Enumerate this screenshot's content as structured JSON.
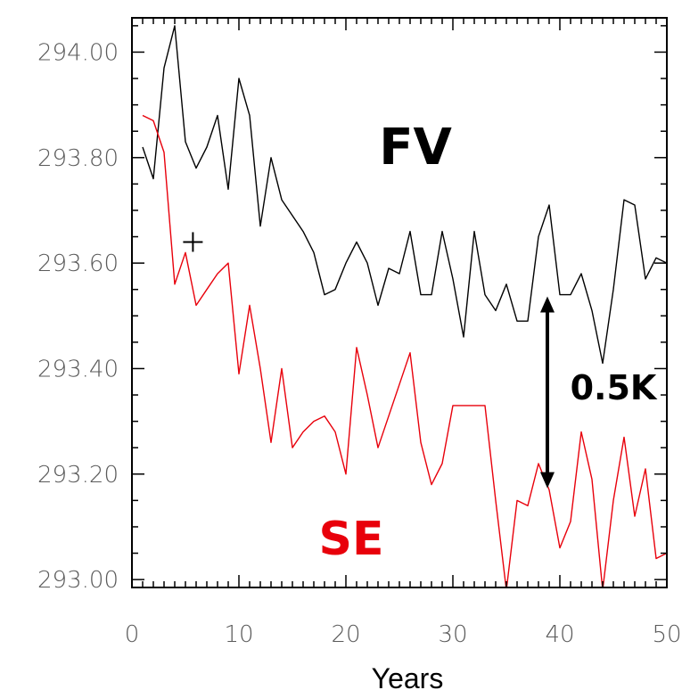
{
  "chart_data": {
    "type": "line",
    "xlabel": "Years",
    "ylabel": "",
    "xlim": [
      0,
      50
    ],
    "ylim": [
      292.985,
      294.065
    ],
    "xticks": [
      0,
      10,
      20,
      30,
      40,
      50
    ],
    "xtick_labels": [
      "0",
      "10",
      "20",
      "30",
      "40",
      "50"
    ],
    "yticks": [
      293.0,
      293.2,
      293.4,
      293.6,
      293.8,
      294.0
    ],
    "ytick_labels": [
      "293.00",
      "293.20",
      "293.40",
      "293.60",
      "293.80",
      "294.00"
    ],
    "grid": false,
    "series": [
      {
        "name": "FV",
        "color": "#000000",
        "x": [
          1,
          2,
          3,
          4,
          5,
          6,
          7,
          8,
          9,
          10,
          11,
          12,
          13,
          14,
          15,
          16,
          17,
          18,
          19,
          20,
          21,
          22,
          23,
          24,
          25,
          26,
          27,
          28,
          29,
          30,
          31,
          32,
          33,
          34,
          35,
          36,
          37,
          38,
          39,
          40,
          41,
          42,
          43,
          44,
          45,
          46,
          47,
          48,
          49,
          50
        ],
        "values": [
          293.82,
          293.76,
          293.97,
          294.05,
          293.83,
          293.78,
          293.82,
          293.88,
          293.74,
          293.95,
          293.88,
          293.67,
          293.8,
          293.72,
          293.69,
          293.66,
          293.62,
          293.54,
          293.55,
          293.6,
          293.64,
          293.6,
          293.52,
          293.59,
          293.58,
          293.66,
          293.54,
          293.54,
          293.66,
          293.57,
          293.46,
          293.66,
          293.54,
          293.51,
          293.56,
          293.49,
          293.49,
          293.65,
          293.71,
          293.54,
          293.54,
          293.58,
          293.51,
          293.41,
          293.55,
          293.72,
          293.71,
          293.57,
          293.61,
          293.6
        ]
      },
      {
        "name": "SE",
        "color": "#e8000b",
        "x": [
          1,
          2,
          3,
          4,
          5,
          6,
          7,
          8,
          9,
          10,
          11,
          12,
          13,
          14,
          15,
          16,
          17,
          18,
          19,
          20,
          21,
          22,
          23,
          24,
          25,
          26,
          27,
          28,
          29,
          30,
          31,
          32,
          33,
          34,
          35,
          36,
          37,
          38,
          39,
          40,
          41,
          42,
          43,
          44,
          45,
          46,
          47,
          48,
          49,
          50
        ],
        "values": [
          293.88,
          293.87,
          293.81,
          293.56,
          293.62,
          293.52,
          293.55,
          293.58,
          293.6,
          293.39,
          293.52,
          293.4,
          293.26,
          293.4,
          293.25,
          293.28,
          293.3,
          293.31,
          293.28,
          293.2,
          293.44,
          293.35,
          293.25,
          293.31,
          293.37,
          293.43,
          293.26,
          293.18,
          293.22,
          293.33,
          293.33,
          293.33,
          293.33,
          293.15,
          292.98,
          293.15,
          293.14,
          293.22,
          293.17,
          293.06,
          293.11,
          293.28,
          293.19,
          292.98,
          293.15,
          293.27,
          293.12,
          293.21,
          293.04,
          293.05
        ]
      }
    ],
    "annotations": {
      "fv_label": "FV",
      "se_label": "SE",
      "delta_label": "0.5K",
      "delta_arrow": {
        "x": 39,
        "y_top": 293.53,
        "y_bottom": 293.18
      },
      "marker": {
        "symbol": "+",
        "x": 5.7,
        "y": 293.64
      }
    }
  },
  "colors": {
    "axis": "#000000",
    "tick_label": "#5a5a5a",
    "se_label": "#e8000b"
  }
}
